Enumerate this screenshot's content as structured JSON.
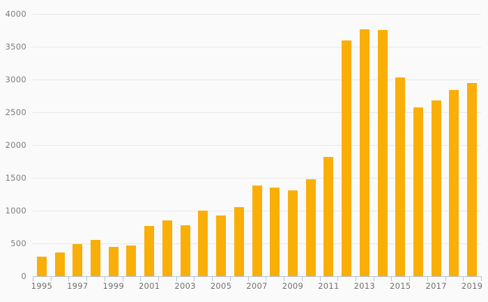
{
  "chart_data": {
    "type": "bar",
    "title": "",
    "xlabel": "",
    "ylabel": "",
    "categories": [
      1995,
      1996,
      1997,
      1998,
      1999,
      2000,
      2001,
      2002,
      2003,
      2004,
      2005,
      2006,
      2007,
      2008,
      2009,
      2010,
      2011,
      2012,
      2013,
      2014,
      2015,
      2016,
      2017,
      2018,
      2019
    ],
    "values": [
      300,
      360,
      485,
      550,
      450,
      470,
      770,
      855,
      780,
      1000,
      925,
      1055,
      1385,
      1350,
      1310,
      1475,
      1820,
      3600,
      3765,
      3755,
      3030,
      2575,
      2685,
      2840,
      2945
    ],
    "ylim": [
      0,
      4000
    ],
    "y_tick_interval": 500,
    "y_tick_labels": [
      "0",
      "500",
      "1000",
      "1500",
      "2000",
      "2500",
      "3000",
      "3500",
      "4000"
    ],
    "x_tick_labels": [
      "1995",
      "1997",
      "1999",
      "2001",
      "2003",
      "2005",
      "2007",
      "2009",
      "2011",
      "2013",
      "2015",
      "2017",
      "2019"
    ],
    "x_label_interval": 2,
    "grid": true,
    "legend": false
  },
  "colors": {
    "background": "#FAFAFA",
    "bar": "#FAAE08",
    "gridline": "#E8E8E8",
    "axis_line": "#B5C1D8",
    "tick": "#B5C1D8",
    "y_label_text": "#7C7C7C",
    "x_label_text": "#6F6F6F"
  }
}
